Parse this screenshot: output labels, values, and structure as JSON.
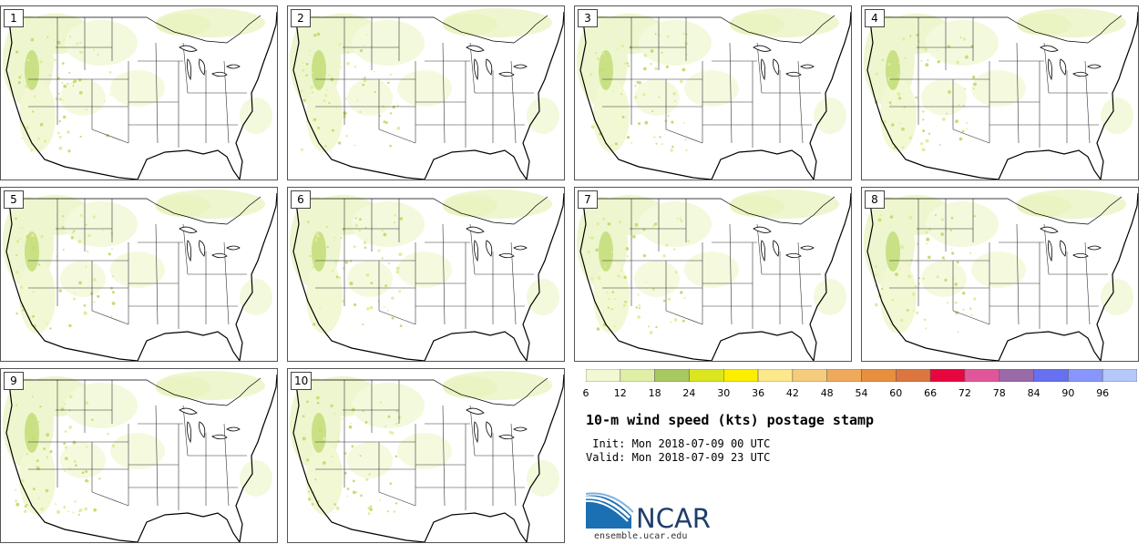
{
  "panels": [
    {
      "label": "1"
    },
    {
      "label": "2"
    },
    {
      "label": "3"
    },
    {
      "label": "4"
    },
    {
      "label": "5"
    },
    {
      "label": "6"
    },
    {
      "label": "7"
    },
    {
      "label": "8"
    },
    {
      "label": "9"
    },
    {
      "label": "10"
    }
  ],
  "colorbar": {
    "colors": [
      "#f1f8d3",
      "#dff0a6",
      "#a8c860",
      "#dbe61f",
      "#fbee00",
      "#fde98c",
      "#f5cc7c",
      "#efa95a",
      "#e78f3e",
      "#db7640",
      "#e8063f",
      "#e1569b",
      "#9a6aa8",
      "#6670f0",
      "#8895fa",
      "#b6c8fa"
    ],
    "ticks": [
      "6",
      "12",
      "18",
      "24",
      "30",
      "36",
      "42",
      "48",
      "54",
      "60",
      "66",
      "72",
      "78",
      "84",
      "90",
      "96"
    ]
  },
  "title": "10-m wind speed (kts) postage stamp",
  "init_line": " Init: Mon 2018-07-09 00 UTC",
  "valid_line": "Valid: Mon 2018-07-09 23 UTC",
  "logo": {
    "text": "NCAR",
    "url": "ensemble.ucar.edu"
  }
}
